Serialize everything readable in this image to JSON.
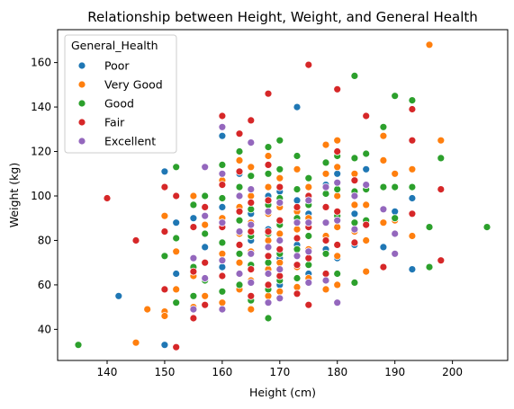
{
  "chart_data": {
    "type": "scatter",
    "title": "Relationship between Height, Weight, and General Health",
    "xlabel": "Height (cm)",
    "ylabel": "Weight (kg)",
    "xlim": [
      131.4,
      209.6
    ],
    "ylim": [
      26.0,
      174.8
    ],
    "xticks": [
      140,
      150,
      160,
      170,
      180,
      190,
      200
    ],
    "yticks": [
      40,
      60,
      80,
      100,
      120,
      140,
      160
    ],
    "grid": false,
    "legend": {
      "title": "General_Health",
      "position": "top-left"
    },
    "series": [
      {
        "name": "Poor",
        "color": "#1f77b4",
        "points": [
          [
            142,
            55
          ],
          [
            150,
            33
          ],
          [
            150,
            111
          ],
          [
            152,
            88
          ],
          [
            152,
            65
          ],
          [
            155,
            90
          ],
          [
            155,
            72
          ],
          [
            157,
            77
          ],
          [
            160,
            127
          ],
          [
            160,
            95
          ],
          [
            160,
            68
          ],
          [
            163,
            110
          ],
          [
            165,
            92
          ],
          [
            165,
            80
          ],
          [
            165,
            62
          ],
          [
            168,
            100
          ],
          [
            168,
            85
          ],
          [
            170,
            102
          ],
          [
            170,
            72
          ],
          [
            170,
            60
          ],
          [
            173,
            140
          ],
          [
            173,
            98
          ],
          [
            173,
            78
          ],
          [
            175,
            92
          ],
          [
            175,
            65
          ],
          [
            178,
            105
          ],
          [
            178,
            76
          ],
          [
            180,
            110
          ],
          [
            180,
            72
          ],
          [
            183,
            92
          ],
          [
            183,
            78
          ],
          [
            185,
            112
          ],
          [
            188,
            77
          ],
          [
            190,
            93
          ],
          [
            193,
            99
          ],
          [
            193,
            67
          ]
        ]
      },
      {
        "name": "Very Good",
        "color": "#ff7f0e",
        "points": [
          [
            145,
            34
          ],
          [
            147,
            49
          ],
          [
            150,
            91
          ],
          [
            150,
            48
          ],
          [
            150,
            46
          ],
          [
            152,
            75
          ],
          [
            152,
            58
          ],
          [
            155,
            100
          ],
          [
            155,
            64
          ],
          [
            155,
            50
          ],
          [
            157,
            87
          ],
          [
            157,
            55
          ],
          [
            160,
            107
          ],
          [
            160,
            90
          ],
          [
            160,
            74
          ],
          [
            160,
            52
          ],
          [
            163,
            116
          ],
          [
            163,
            95
          ],
          [
            163,
            83
          ],
          [
            163,
            70
          ],
          [
            163,
            58
          ],
          [
            165,
            113
          ],
          [
            165,
            100
          ],
          [
            165,
            88
          ],
          [
            165,
            75
          ],
          [
            165,
            62
          ],
          [
            165,
            49
          ],
          [
            168,
            118
          ],
          [
            168,
            104
          ],
          [
            168,
            92
          ],
          [
            168,
            80
          ],
          [
            168,
            67
          ],
          [
            168,
            55
          ],
          [
            170,
            108
          ],
          [
            170,
            95
          ],
          [
            170,
            83
          ],
          [
            170,
            70
          ],
          [
            170,
            57
          ],
          [
            173,
            112
          ],
          [
            173,
            93
          ],
          [
            173,
            85
          ],
          [
            173,
            68
          ],
          [
            173,
            59
          ],
          [
            175,
            104
          ],
          [
            175,
            90
          ],
          [
            175,
            76
          ],
          [
            175,
            63
          ],
          [
            178,
            123
          ],
          [
            178,
            110
          ],
          [
            178,
            95
          ],
          [
            178,
            82
          ],
          [
            178,
            58
          ],
          [
            180,
            125
          ],
          [
            180,
            113
          ],
          [
            180,
            100
          ],
          [
            180,
            86
          ],
          [
            180,
            73
          ],
          [
            180,
            60
          ],
          [
            183,
            110
          ],
          [
            183,
            96
          ],
          [
            183,
            84
          ],
          [
            185,
            96
          ],
          [
            185,
            80
          ],
          [
            185,
            66
          ],
          [
            188,
            127
          ],
          [
            188,
            116
          ],
          [
            188,
            104
          ],
          [
            188,
            88
          ],
          [
            190,
            110
          ],
          [
            190,
            89
          ],
          [
            193,
            112
          ],
          [
            193,
            82
          ],
          [
            196,
            168
          ],
          [
            198,
            125
          ]
        ]
      },
      {
        "name": "Good",
        "color": "#2ca02c",
        "points": [
          [
            135,
            33
          ],
          [
            150,
            73
          ],
          [
            150,
            58
          ],
          [
            152,
            113
          ],
          [
            152,
            81
          ],
          [
            152,
            52
          ],
          [
            155,
            96
          ],
          [
            155,
            68
          ],
          [
            155,
            55
          ],
          [
            157,
            100
          ],
          [
            157,
            83
          ],
          [
            157,
            62
          ],
          [
            160,
            114
          ],
          [
            160,
            99
          ],
          [
            160,
            79
          ],
          [
            160,
            57
          ],
          [
            163,
            120
          ],
          [
            163,
            104
          ],
          [
            163,
            89
          ],
          [
            163,
            74
          ],
          [
            163,
            60
          ],
          [
            165,
            109
          ],
          [
            165,
            94
          ],
          [
            165,
            82
          ],
          [
            165,
            69
          ],
          [
            165,
            53
          ],
          [
            168,
            122
          ],
          [
            168,
            110
          ],
          [
            168,
            96
          ],
          [
            168,
            83
          ],
          [
            168,
            70
          ],
          [
            168,
            58
          ],
          [
            168,
            45
          ],
          [
            170,
            125
          ],
          [
            170,
            112
          ],
          [
            170,
            99
          ],
          [
            170,
            87
          ],
          [
            170,
            74
          ],
          [
            170,
            62
          ],
          [
            173,
            118
          ],
          [
            173,
            103
          ],
          [
            173,
            90
          ],
          [
            173,
            76
          ],
          [
            173,
            63
          ],
          [
            175,
            108
          ],
          [
            175,
            96
          ],
          [
            175,
            82
          ],
          [
            175,
            69
          ],
          [
            178,
            115
          ],
          [
            178,
            101
          ],
          [
            178,
            88
          ],
          [
            178,
            74
          ],
          [
            180,
            118
          ],
          [
            180,
            103
          ],
          [
            180,
            91
          ],
          [
            180,
            78
          ],
          [
            180,
            65
          ],
          [
            183,
            154
          ],
          [
            183,
            117
          ],
          [
            183,
            102
          ],
          [
            183,
            88
          ],
          [
            183,
            61
          ],
          [
            185,
            119
          ],
          [
            185,
            103
          ],
          [
            185,
            89
          ],
          [
            188,
            131
          ],
          [
            188,
            104
          ],
          [
            190,
            145
          ],
          [
            190,
            104
          ],
          [
            190,
            90
          ],
          [
            193,
            143
          ],
          [
            193,
            104
          ],
          [
            196,
            86
          ],
          [
            196,
            68
          ],
          [
            198,
            117
          ],
          [
            206,
            86
          ]
        ]
      },
      {
        "name": "Fair",
        "color": "#d62728",
        "points": [
          [
            140,
            99
          ],
          [
            145,
            80
          ],
          [
            150,
            104
          ],
          [
            150,
            84
          ],
          [
            150,
            58
          ],
          [
            152,
            32
          ],
          [
            152,
            100
          ],
          [
            155,
            86
          ],
          [
            155,
            66
          ],
          [
            155,
            45
          ],
          [
            157,
            95
          ],
          [
            157,
            70
          ],
          [
            157,
            51
          ],
          [
            160,
            136
          ],
          [
            160,
            105
          ],
          [
            160,
            86
          ],
          [
            160,
            64
          ],
          [
            163,
            128
          ],
          [
            163,
            111
          ],
          [
            163,
            93
          ],
          [
            163,
            78
          ],
          [
            163,
            65
          ],
          [
            165,
            134
          ],
          [
            165,
            97
          ],
          [
            165,
            84
          ],
          [
            165,
            67
          ],
          [
            165,
            55
          ],
          [
            168,
            146
          ],
          [
            168,
            114
          ],
          [
            168,
            98
          ],
          [
            168,
            84
          ],
          [
            168,
            73
          ],
          [
            168,
            60
          ],
          [
            170,
            104
          ],
          [
            170,
            89
          ],
          [
            170,
            76
          ],
          [
            170,
            64
          ],
          [
            173,
            95
          ],
          [
            173,
            81
          ],
          [
            173,
            69
          ],
          [
            173,
            56
          ],
          [
            175,
            159
          ],
          [
            175,
            100
          ],
          [
            175,
            86
          ],
          [
            175,
            72
          ],
          [
            175,
            51
          ],
          [
            178,
            95
          ],
          [
            178,
            80
          ],
          [
            178,
            65
          ],
          [
            180,
            148
          ],
          [
            180,
            120
          ],
          [
            180,
            93
          ],
          [
            180,
            78
          ],
          [
            183,
            107
          ],
          [
            183,
            79
          ],
          [
            185,
            136
          ],
          [
            185,
            87
          ],
          [
            188,
            68
          ],
          [
            193,
            139
          ],
          [
            193,
            125
          ],
          [
            193,
            92
          ],
          [
            198,
            103
          ],
          [
            198,
            71
          ]
        ]
      },
      {
        "name": "Excellent",
        "color": "#9467bd",
        "points": [
          [
            155,
            72
          ],
          [
            155,
            49
          ],
          [
            157,
            113
          ],
          [
            157,
            91
          ],
          [
            157,
            63
          ],
          [
            160,
            131
          ],
          [
            160,
            110
          ],
          [
            160,
            88
          ],
          [
            160,
            71
          ],
          [
            160,
            49
          ],
          [
            163,
            100
          ],
          [
            163,
            84
          ],
          [
            163,
            65
          ],
          [
            165,
            124
          ],
          [
            165,
            103
          ],
          [
            165,
            87
          ],
          [
            165,
            74
          ],
          [
            165,
            61
          ],
          [
            168,
            93
          ],
          [
            168,
            77
          ],
          [
            168,
            65
          ],
          [
            168,
            52
          ],
          [
            170,
            97
          ],
          [
            170,
            80
          ],
          [
            170,
            67
          ],
          [
            170,
            54
          ],
          [
            173,
            88
          ],
          [
            173,
            73
          ],
          [
            175,
            98
          ],
          [
            175,
            88
          ],
          [
            175,
            75
          ],
          [
            175,
            61
          ],
          [
            178,
            104
          ],
          [
            178,
            88
          ],
          [
            178,
            62
          ],
          [
            180,
            106
          ],
          [
            180,
            89
          ],
          [
            180,
            52
          ],
          [
            183,
            100
          ],
          [
            183,
            85
          ],
          [
            185,
            105
          ],
          [
            188,
            94
          ],
          [
            190,
            83
          ],
          [
            190,
            74
          ]
        ]
      }
    ]
  }
}
